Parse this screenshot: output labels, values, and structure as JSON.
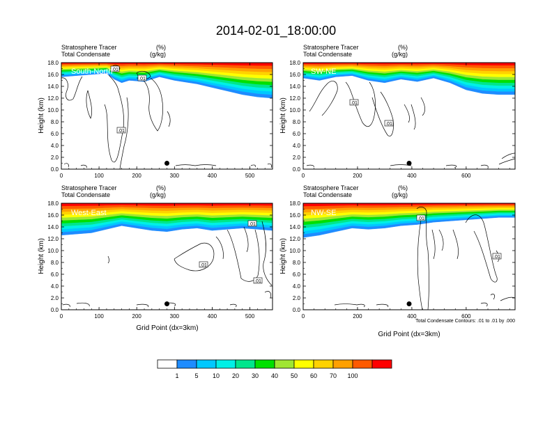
{
  "figure": {
    "title": "2014-02-01_18:00:00"
  },
  "chart_data": [
    {
      "type": "heatmap",
      "panel_label": "South-North",
      "subtitle_left_1": "Stratosphere Tracer",
      "subtitle_right_1": "(%)",
      "subtitle_left_2": "Total Condensate",
      "subtitle_right_2": "(g/kg)",
      "ylabel": "Height (km)",
      "xlabel": "",
      "xlim": [
        0,
        560
      ],
      "ylim": [
        0,
        18
      ],
      "x_ticks": [
        "0",
        "100",
        "200",
        "300",
        "400",
        "500"
      ],
      "x_tick_values": [
        0,
        100,
        200,
        300,
        400,
        500
      ],
      "y_ticks": [
        "0.0",
        "2.0",
        "4.0",
        "6.0",
        "8.0",
        "10.0",
        "12.0",
        "14.0",
        "16.0",
        "18.0"
      ],
      "contour_labels": [
        ".01",
        ".01",
        ".01"
      ],
      "marker_x": 280,
      "marker_y": 1.0,
      "tracer_bottom_profile": [
        [
          0,
          15.6
        ],
        [
          40,
          15.8
        ],
        [
          80,
          16.0
        ],
        [
          120,
          16.2
        ],
        [
          140,
          15.2
        ],
        [
          160,
          14.6
        ],
        [
          180,
          15.0
        ],
        [
          220,
          14.8
        ],
        [
          260,
          15.6
        ],
        [
          300,
          15.0
        ],
        [
          320,
          14.8
        ],
        [
          360,
          14.4
        ],
        [
          400,
          13.8
        ],
        [
          440,
          13.2
        ],
        [
          480,
          12.6
        ],
        [
          520,
          12.2
        ],
        [
          560,
          12.0
        ]
      ]
    },
    {
      "type": "heatmap",
      "panel_label": "SW-NE",
      "subtitle_left_1": "Stratosphere Tracer",
      "subtitle_right_1": "(%)",
      "subtitle_left_2": "Total Condensate",
      "subtitle_right_2": "(g/kg)",
      "ylabel": "Height (km)",
      "xlabel": "",
      "xlim": [
        0,
        780
      ],
      "ylim": [
        0,
        18
      ],
      "x_ticks": [
        "0",
        "200",
        "400",
        "600"
      ],
      "x_tick_values": [
        0,
        200,
        400,
        600
      ],
      "y_ticks": [
        "0.0",
        "2.0",
        "4.0",
        "6.0",
        "8.0",
        "10.0",
        "12.0",
        "14.0",
        "16.0",
        "18.0"
      ],
      "contour_labels": [
        ".01",
        ".01"
      ],
      "marker_x": 390,
      "marker_y": 1.0,
      "tracer_bottom_profile": [
        [
          0,
          15.4
        ],
        [
          60,
          15.0
        ],
        [
          120,
          15.6
        ],
        [
          180,
          15.8
        ],
        [
          240,
          15.0
        ],
        [
          300,
          14.6
        ],
        [
          360,
          15.2
        ],
        [
          420,
          14.8
        ],
        [
          480,
          15.4
        ],
        [
          540,
          14.6
        ],
        [
          600,
          13.4
        ],
        [
          660,
          12.8
        ],
        [
          720,
          12.6
        ],
        [
          780,
          12.6
        ]
      ]
    },
    {
      "type": "heatmap",
      "panel_label": "West-East",
      "subtitle_left_1": "Stratosphere Tracer",
      "subtitle_right_1": "(%)",
      "subtitle_left_2": "Total Condensate",
      "subtitle_right_2": "(g/kg)",
      "ylabel": "Height (km)",
      "xlabel": "Grid Point (dx=3km)",
      "xlim": [
        0,
        560
      ],
      "ylim": [
        0,
        18
      ],
      "x_ticks": [
        "0",
        "100",
        "200",
        "300",
        "400",
        "500"
      ],
      "x_tick_values": [
        0,
        100,
        200,
        300,
        400,
        500
      ],
      "y_ticks": [
        "0.0",
        "2.0",
        "4.0",
        "6.0",
        "8.0",
        "10.0",
        "12.0",
        "14.0",
        "16.0",
        "18.0"
      ],
      "contour_labels": [
        ".01",
        ".01",
        ".01"
      ],
      "marker_x": 280,
      "marker_y": 1.0,
      "tracer_bottom_profile": [
        [
          0,
          12.6
        ],
        [
          40,
          12.8
        ],
        [
          80,
          13.0
        ],
        [
          120,
          13.6
        ],
        [
          160,
          14.2
        ],
        [
          200,
          13.8
        ],
        [
          240,
          13.4
        ],
        [
          280,
          13.2
        ],
        [
          320,
          13.6
        ],
        [
          360,
          13.8
        ],
        [
          400,
          13.4
        ],
        [
          440,
          13.6
        ],
        [
          480,
          13.8
        ],
        [
          520,
          13.6
        ],
        [
          560,
          13.4
        ]
      ]
    },
    {
      "type": "heatmap",
      "panel_label": "NW-SE",
      "subtitle_left_1": "Stratosphere Tracer",
      "subtitle_right_1": "(%)",
      "subtitle_left_2": "Total Condensate",
      "subtitle_right_2": "(g/kg)",
      "ylabel": "Height (km)",
      "xlabel": "Grid Point (dx=3km)",
      "xlim": [
        0,
        780
      ],
      "ylim": [
        0,
        18
      ],
      "x_ticks": [
        "0",
        "200",
        "400",
        "600"
      ],
      "x_tick_values": [
        0,
        200,
        400,
        600
      ],
      "y_ticks": [
        "0.0",
        "2.0",
        "4.0",
        "6.0",
        "8.0",
        "10.0",
        "12.0",
        "14.0",
        "16.0",
        "18.0"
      ],
      "contour_labels": [
        ".01",
        ".01"
      ],
      "contour_note": "Total Condensate Contours: .01 to .01 by .000",
      "marker_x": 390,
      "marker_y": 1.0,
      "tracer_bottom_profile": [
        [
          0,
          12.2
        ],
        [
          60,
          12.6
        ],
        [
          120,
          13.2
        ],
        [
          180,
          13.8
        ],
        [
          240,
          13.6
        ],
        [
          300,
          13.8
        ],
        [
          360,
          14.2
        ],
        [
          420,
          14.4
        ],
        [
          480,
          14.8
        ],
        [
          540,
          15.0
        ],
        [
          600,
          15.2
        ],
        [
          660,
          15.4
        ],
        [
          720,
          15.6
        ],
        [
          780,
          15.6
        ]
      ]
    }
  ],
  "colorbar": {
    "colors": [
      "#ffffff",
      "#1e8cff",
      "#00c8ff",
      "#00f0e6",
      "#00e68c",
      "#00e000",
      "#a0e632",
      "#ffff00",
      "#ffd200",
      "#ffa000",
      "#ff5a00",
      "#ff0000"
    ],
    "tick_labels": [
      "1",
      "5",
      "10",
      "20",
      "30",
      "40",
      "50",
      "60",
      "70",
      "100"
    ]
  }
}
